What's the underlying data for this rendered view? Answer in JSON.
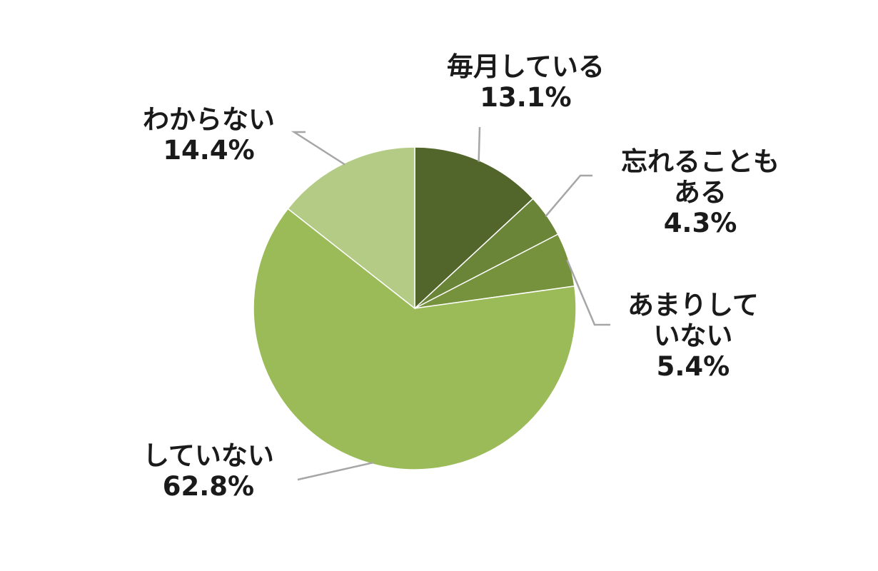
{
  "chart_data": {
    "type": "pie",
    "categories": [
      "毎月している",
      "忘れることもある",
      "あまりしていない",
      "していない",
      "わからない"
    ],
    "values": [
      13.1,
      4.3,
      5.4,
      62.8,
      14.4
    ],
    "value_labels": [
      "13.1%",
      "4.3%",
      "5.4%",
      "62.8%",
      "14.4%"
    ],
    "label_lines": [
      [
        "毎月している"
      ],
      [
        "忘れることも",
        "ある"
      ],
      [
        "あまりして",
        "いない"
      ],
      [
        "していない"
      ],
      [
        "わからない"
      ]
    ],
    "colors": [
      "#52652a",
      "#6a8438",
      "#76923c",
      "#9bbb59",
      "#b3cb84"
    ],
    "start_angle": "12 o'clock",
    "direction": "clockwise",
    "legend": "none"
  }
}
